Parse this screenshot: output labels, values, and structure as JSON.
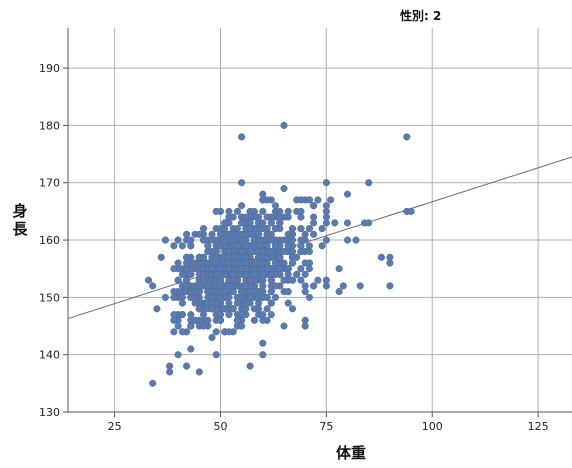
{
  "panel_title": "性別: 2",
  "chart_data": {
    "type": "scatter",
    "xlabel": "体重",
    "ylabel": "身長",
    "xlim": [
      14,
      133
    ],
    "ylim": [
      130,
      197
    ],
    "xticks": [
      25,
      50,
      75,
      100,
      125
    ],
    "yticks": [
      130,
      140,
      150,
      160,
      170,
      180,
      190
    ],
    "grid": true,
    "fit_line": {
      "x1": 14,
      "y1": 146.3,
      "x2": 133,
      "y2": 174.5
    },
    "outliers": [
      [
        34,
        135
      ],
      [
        38,
        137
      ],
      [
        38,
        138
      ],
      [
        45,
        137
      ],
      [
        57,
        138
      ],
      [
        60,
        140
      ],
      [
        60,
        142
      ],
      [
        49,
        140
      ],
      [
        43,
        141
      ],
      [
        55,
        178
      ],
      [
        65,
        180
      ],
      [
        94,
        178
      ],
      [
        94,
        165
      ],
      [
        95,
        165
      ],
      [
        85,
        170
      ],
      [
        80,
        168
      ],
      [
        88,
        157
      ],
      [
        90,
        157
      ],
      [
        90,
        156
      ],
      [
        90,
        152
      ],
      [
        83,
        152
      ],
      [
        79,
        152
      ],
      [
        78,
        151
      ],
      [
        75,
        153
      ],
      [
        75,
        152
      ],
      [
        78,
        155
      ],
      [
        80,
        160
      ],
      [
        82,
        160
      ],
      [
        80,
        163
      ],
      [
        84,
        163
      ],
      [
        85,
        163
      ],
      [
        33,
        153
      ],
      [
        34,
        152
      ],
      [
        35,
        148
      ],
      [
        37,
        160
      ],
      [
        36,
        157
      ],
      [
        37,
        150
      ],
      [
        39,
        147
      ],
      [
        40,
        140
      ],
      [
        42,
        138
      ],
      [
        70,
        145
      ],
      [
        70,
        146
      ],
      [
        75,
        160
      ],
      [
        75,
        163
      ],
      [
        75,
        164
      ],
      [
        75,
        165
      ],
      [
        75,
        166
      ],
      [
        76,
        167
      ],
      [
        77,
        163
      ],
      [
        75,
        170
      ],
      [
        65,
        145
      ],
      [
        60,
        146
      ],
      [
        55,
        145
      ],
      [
        52,
        144
      ],
      [
        48,
        143
      ],
      [
        46,
        145
      ]
    ],
    "cluster": {
      "cx": 55,
      "cy": 155,
      "sx": 8.5,
      "sy": 5.2,
      "rho": 0.42,
      "n": 900,
      "seed": 7
    }
  }
}
